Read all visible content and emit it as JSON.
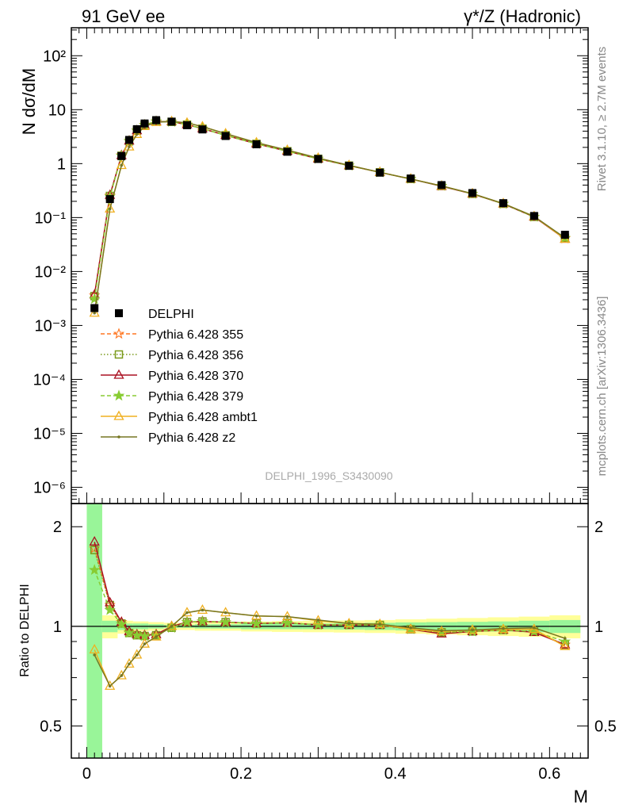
{
  "header": {
    "left": "91 GeV ee",
    "right": "γ*/Z (Hadronic)"
  },
  "side_labels": {
    "top": "Rivet 3.1.10, ≥ 2.7M events",
    "bottom": "mcplots.cern.ch [arXiv:1306.3436]"
  },
  "analysis_label": "DELPHI_1996_S3430090",
  "chart_data": [
    {
      "type": "scatter",
      "ylabel": "N dσ/dM",
      "xlabel": "M",
      "xlim": [
        -0.02,
        0.65
      ],
      "ylim": [
        5e-07,
        330
      ],
      "yscale": "log",
      "yticklabels": [
        "10⁻⁶",
        "10⁻⁵",
        "10⁻⁴",
        "10⁻³",
        "10⁻²",
        "10⁻¹",
        "1",
        "10",
        "10²"
      ],
      "legend_position": "middle-left",
      "x": [
        0.01,
        0.03,
        0.045,
        0.055,
        0.065,
        0.075,
        0.09,
        0.11,
        0.13,
        0.15,
        0.18,
        0.22,
        0.26,
        0.3,
        0.34,
        0.38,
        0.42,
        0.46,
        0.5,
        0.54,
        0.58,
        0.62
      ],
      "series": [
        {
          "name": "DELPHI",
          "color": "#000000",
          "marker": "square",
          "values": [
            0.0021,
            0.22,
            1.38,
            2.75,
            4.35,
            5.55,
            6.4,
            6.0,
            5.15,
            4.3,
            3.25,
            2.28,
            1.66,
            1.22,
            0.91,
            0.68,
            0.53,
            0.4,
            0.285,
            0.185,
            0.107,
            0.048
          ]
        },
        {
          "name": "Pythia 6.428 355",
          "color": "#ff7722",
          "marker": "star-open",
          "dash": "5,3",
          "values": [
            0.0036,
            0.255,
            1.42,
            2.62,
            4.1,
            5.2,
            6.05,
            5.95,
            5.3,
            4.45,
            3.35,
            2.33,
            1.7,
            1.23,
            0.92,
            0.69,
            0.52,
            0.385,
            0.275,
            0.18,
            0.103,
            0.041
          ]
        },
        {
          "name": "Pythia 6.428 356",
          "color": "#7a9a1a",
          "marker": "square-open",
          "dash": "1.5,2.5",
          "values": [
            0.0035,
            0.252,
            1.4,
            2.6,
            4.08,
            5.18,
            6.02,
            5.95,
            5.3,
            4.45,
            3.35,
            2.33,
            1.7,
            1.23,
            0.92,
            0.69,
            0.52,
            0.385,
            0.275,
            0.18,
            0.103,
            0.042
          ]
        },
        {
          "name": "Pythia 6.428 370",
          "color": "#aa1122",
          "marker": "triangle-open",
          "values": [
            0.0037,
            0.26,
            1.42,
            2.65,
            4.1,
            5.2,
            6.05,
            6.0,
            5.3,
            4.45,
            3.35,
            2.33,
            1.7,
            1.23,
            0.92,
            0.69,
            0.52,
            0.38,
            0.275,
            0.18,
            0.103,
            0.04
          ]
        },
        {
          "name": "Pythia 6.428 379",
          "color": "#88cc33",
          "marker": "star",
          "dash": "5,3",
          "values": [
            0.0031,
            0.245,
            1.4,
            2.62,
            4.1,
            5.2,
            6.05,
            5.95,
            5.3,
            4.45,
            3.35,
            2.33,
            1.7,
            1.23,
            0.92,
            0.69,
            0.52,
            0.385,
            0.275,
            0.18,
            0.103,
            0.042
          ]
        },
        {
          "name": "Pythia 6.428 ambt1",
          "color": "#f0b020",
          "marker": "triangle-open",
          "values": [
            0.0017,
            0.145,
            0.93,
            2.05,
            3.5,
            4.9,
            5.85,
            6.05,
            5.7,
            4.85,
            3.6,
            2.45,
            1.78,
            1.27,
            0.93,
            0.69,
            0.52,
            0.385,
            0.278,
            0.182,
            0.105,
            0.04
          ]
        },
        {
          "name": "Pythia 6.428 z2",
          "color": "#777722",
          "marker": "dot",
          "values": [
            0.0017,
            0.145,
            0.93,
            2.05,
            3.5,
            4.9,
            5.85,
            6.05,
            5.7,
            4.85,
            3.6,
            2.45,
            1.78,
            1.27,
            0.93,
            0.69,
            0.52,
            0.385,
            0.278,
            0.182,
            0.105,
            0.042
          ]
        }
      ]
    },
    {
      "type": "line",
      "ylabel": "Ratio to DELPHI",
      "xlabel": "M",
      "xlim": [
        -0.02,
        0.65
      ],
      "ylim": [
        0.4,
        2.35
      ],
      "yscale": "log",
      "yticks": [
        0.5,
        1,
        2
      ],
      "xticks": [
        0,
        0.2,
        0.4,
        0.6
      ],
      "reference": 1,
      "x": [
        0.01,
        0.03,
        0.045,
        0.055,
        0.065,
        0.075,
        0.09,
        0.11,
        0.13,
        0.15,
        0.18,
        0.22,
        0.26,
        0.3,
        0.34,
        0.38,
        0.42,
        0.46,
        0.5,
        0.54,
        0.58,
        0.62
      ],
      "bands": {
        "edges": [
          0.0,
          0.02,
          0.04,
          0.05,
          0.06,
          0.07,
          0.08,
          0.1,
          0.12,
          0.14,
          0.16,
          0.2,
          0.24,
          0.28,
          0.32,
          0.36,
          0.4,
          0.44,
          0.48,
          0.52,
          0.56,
          0.6,
          0.64
        ],
        "stat_color": "#99f599",
        "syst_color": "#ffff99",
        "stat_lo": [
          0.1,
          0.96,
          0.975,
          0.98,
          0.98,
          0.98,
          0.985,
          0.99,
          0.99,
          0.985,
          0.985,
          0.98,
          0.98,
          0.98,
          0.978,
          0.975,
          0.972,
          0.97,
          0.968,
          0.965,
          0.96,
          0.955
        ],
        "stat_hi": [
          2.4,
          1.04,
          1.025,
          1.02,
          1.02,
          1.02,
          1.015,
          1.01,
          1.01,
          1.015,
          1.015,
          1.02,
          1.02,
          1.02,
          1.022,
          1.025,
          1.028,
          1.03,
          1.032,
          1.035,
          1.04,
          1.045
        ],
        "syst_lo": [
          0.1,
          0.92,
          0.95,
          0.96,
          0.965,
          0.965,
          0.97,
          0.975,
          0.975,
          0.97,
          0.97,
          0.965,
          0.962,
          0.96,
          0.958,
          0.955,
          0.95,
          0.945,
          0.94,
          0.935,
          0.93,
          0.92
        ],
        "syst_hi": [
          2.4,
          1.08,
          1.05,
          1.04,
          1.035,
          1.035,
          1.03,
          1.025,
          1.025,
          1.03,
          1.03,
          1.035,
          1.038,
          1.04,
          1.042,
          1.045,
          1.05,
          1.055,
          1.06,
          1.065,
          1.07,
          1.08
        ]
      },
      "series": [
        {
          "name": "Pythia 6.428 355",
          "color": "#ff7722",
          "marker": "star-open",
          "dash": "5,3",
          "values": [
            1.72,
            1.16,
            1.03,
            0.96,
            0.945,
            0.94,
            0.945,
            0.99,
            1.03,
            1.035,
            1.03,
            1.02,
            1.025,
            1.01,
            1.01,
            1.01,
            0.98,
            0.955,
            0.965,
            0.975,
            0.965,
            0.88
          ]
        },
        {
          "name": "Pythia 6.428 356",
          "color": "#7a9a1a",
          "marker": "square-open",
          "dash": "1.5,2.5",
          "values": [
            1.7,
            1.16,
            1.02,
            0.955,
            0.94,
            0.935,
            0.94,
            0.99,
            1.03,
            1.035,
            1.03,
            1.02,
            1.025,
            1.01,
            1.01,
            1.01,
            0.98,
            0.96,
            0.965,
            0.975,
            0.965,
            0.88
          ]
        },
        {
          "name": "Pythia 6.428 370",
          "color": "#aa1122",
          "marker": "triangle-open",
          "values": [
            1.8,
            1.18,
            1.03,
            0.965,
            0.945,
            0.94,
            0.945,
            1.0,
            1.03,
            1.035,
            1.03,
            1.02,
            1.025,
            1.01,
            1.01,
            1.01,
            0.98,
            0.95,
            0.965,
            0.975,
            0.96,
            0.88
          ]
        },
        {
          "name": "Pythia 6.428 379",
          "color": "#88cc33",
          "marker": "star",
          "dash": "5,3",
          "values": [
            1.48,
            1.12,
            1.015,
            0.955,
            0.94,
            0.935,
            0.94,
            0.99,
            1.03,
            1.035,
            1.03,
            1.02,
            1.025,
            1.01,
            1.01,
            1.01,
            0.98,
            0.96,
            0.965,
            0.975,
            0.965,
            0.9
          ]
        },
        {
          "name": "Pythia 6.428 ambt1",
          "color": "#f0b020",
          "marker": "triangle-open",
          "values": [
            0.85,
            0.66,
            0.71,
            0.77,
            0.82,
            0.885,
            0.93,
            1.0,
            1.1,
            1.12,
            1.1,
            1.075,
            1.07,
            1.04,
            1.02,
            1.015,
            0.98,
            0.965,
            0.975,
            0.98,
            0.98,
            0.87
          ]
        },
        {
          "name": "Pythia 6.428 z2",
          "color": "#777722",
          "marker": "dot",
          "values": [
            0.82,
            0.66,
            0.71,
            0.77,
            0.82,
            0.885,
            0.93,
            1.0,
            1.1,
            1.12,
            1.1,
            1.075,
            1.07,
            1.045,
            1.02,
            1.015,
            0.99,
            0.97,
            0.975,
            0.985,
            0.99,
            0.92
          ]
        }
      ]
    }
  ]
}
